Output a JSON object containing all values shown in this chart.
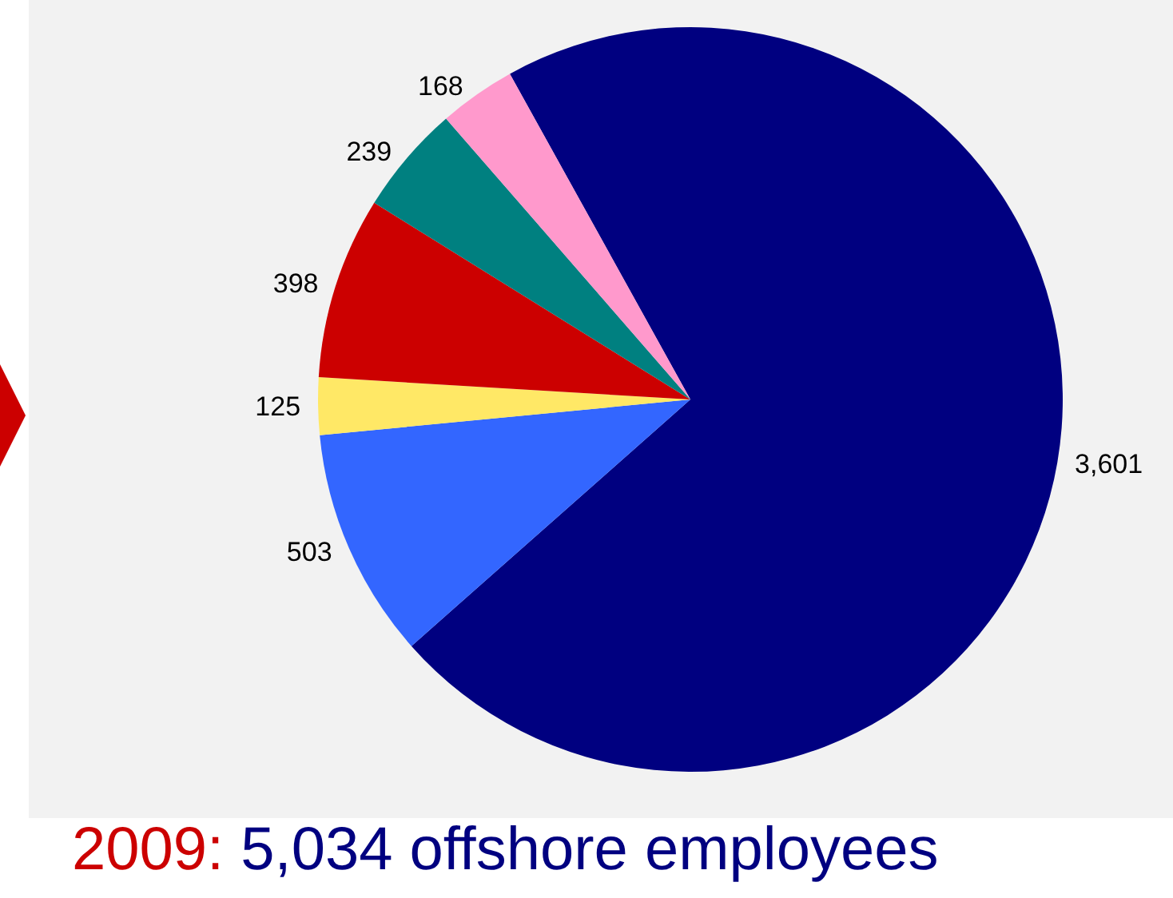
{
  "chart_data": {
    "type": "pie",
    "title": "2009: 5,034 offshore employees",
    "categories": [
      null,
      null,
      null,
      null,
      null,
      null
    ],
    "values": [
      3601,
      503,
      125,
      398,
      239,
      168
    ],
    "value_labels": [
      "3,601",
      "503",
      "125",
      "398",
      "239",
      "168"
    ],
    "colors": [
      "#000080",
      "#3366ff",
      "#ffe866",
      "#cc0000",
      "#008080",
      "#ff99cc"
    ]
  }
}
